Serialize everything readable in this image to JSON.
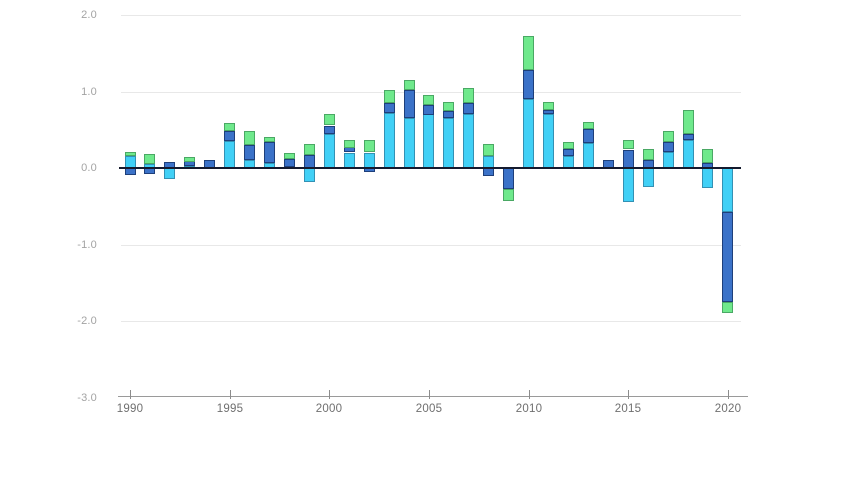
{
  "chart_data": {
    "type": "bar",
    "stacked": true,
    "title": "",
    "xlabel": "",
    "ylabel": "",
    "grid": true,
    "legend": "none",
    "ylim": [
      -3.0,
      2.0
    ],
    "ytick_values": [
      2.0,
      1.0,
      0.0,
      -1.0,
      -2.0,
      -3.0
    ],
    "ytick_labels": [
      "2.0",
      "1.0",
      "0.0",
      "-1.0",
      "-2.0",
      "-3.0"
    ],
    "xtick_years": [
      1990,
      1995,
      2000,
      2005,
      2010,
      2015,
      2020
    ],
    "xtick_labels": [
      "1990",
      "1995",
      "2000",
      "2005",
      "2010",
      "2015",
      "2020"
    ],
    "categories": [
      1990,
      1991,
      1992,
      1993,
      1994,
      1995,
      1996,
      1997,
      1998,
      1999,
      2000,
      2001,
      2002,
      2003,
      2004,
      2005,
      2006,
      2007,
      2008,
      2009,
      2010,
      2011,
      2012,
      2013,
      2014,
      2015,
      2016,
      2017,
      2018,
      2019,
      2020
    ],
    "series": [
      {
        "name": "light-blue",
        "color": "#41d0f6",
        "border_color": "#3391b4",
        "values": [
          0.16,
          0.05,
          -0.14,
          0.03,
          0.0,
          0.35,
          0.11,
          0.07,
          0.02,
          -0.18,
          0.44,
          0.2,
          0.2,
          0.72,
          0.65,
          0.7,
          0.65,
          0.7,
          0.16,
          0.0,
          0.9,
          0.71,
          0.16,
          0.33,
          0.0,
          -0.44,
          -0.25,
          0.21,
          0.37,
          -0.26,
          -0.58
        ]
      },
      {
        "name": "dark-blue",
        "color": "#3b72c8",
        "border_color": "#1e3f7a",
        "values": [
          -0.09,
          -0.08,
          0.08,
          0.06,
          0.11,
          0.13,
          0.19,
          0.27,
          0.1,
          0.17,
          0.11,
          0.07,
          -0.05,
          0.13,
          0.37,
          0.13,
          0.09,
          0.15,
          -0.1,
          -0.27,
          0.38,
          0.05,
          0.09,
          0.18,
          0.1,
          0.24,
          0.1,
          0.13,
          0.08,
          0.07,
          -1.17
        ]
      },
      {
        "name": "green",
        "color": "#6fe98c",
        "border_color": "#4aa864",
        "values": [
          0.05,
          0.13,
          0.0,
          0.06,
          0.0,
          0.11,
          0.18,
          0.07,
          0.08,
          0.14,
          0.15,
          0.1,
          0.16,
          0.17,
          0.13,
          0.13,
          0.12,
          0.19,
          0.16,
          -0.16,
          0.45,
          0.1,
          0.09,
          0.09,
          0.0,
          0.12,
          0.15,
          0.14,
          0.31,
          0.18,
          -0.15
        ]
      }
    ],
    "colors": {
      "grid_line": "#e8e8e8",
      "zero_line": "#141a2e",
      "axis_line": "#9a9a9a",
      "y_tick_label": "#a3a3a3",
      "x_tick_label": "#6f6f6f",
      "background": "#ffffff"
    }
  }
}
